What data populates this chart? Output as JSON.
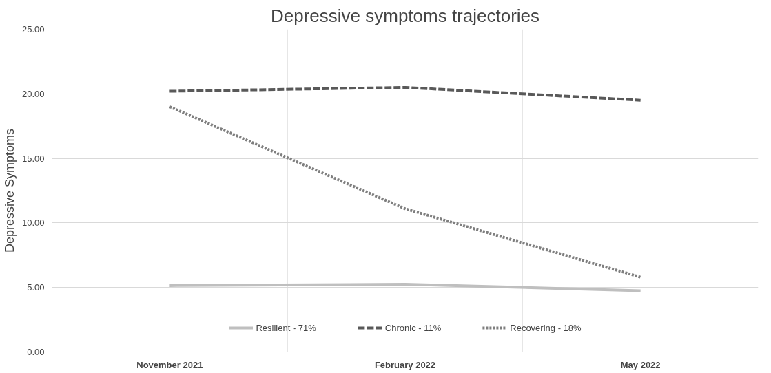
{
  "chart_data": {
    "type": "line",
    "title": "Depressive symptoms trajectories",
    "ylabel": "Depressive Symptoms",
    "categories": [
      "November 2021",
      "February 2022",
      "May 2022"
    ],
    "series": [
      {
        "name": "Resilient - 71%",
        "color": "#bfbfbf",
        "line_style": "solid",
        "values": [
          5.15,
          5.25,
          4.75
        ]
      },
      {
        "name": "Chronic - 11%",
        "color": "#595959",
        "line_style": "dashed",
        "values": [
          20.2,
          20.5,
          19.5
        ]
      },
      {
        "name": "Recovering - 18%",
        "color": "#7f7f7f",
        "line_style": "dotted",
        "values": [
          19.0,
          11.1,
          5.8
        ]
      }
    ],
    "ylim": [
      0,
      25
    ],
    "yticks": [
      {
        "value": 0,
        "label": "0.00"
      },
      {
        "value": 5,
        "label": "5.00"
      },
      {
        "value": 10,
        "label": "10.00"
      },
      {
        "value": 15,
        "label": "15.00"
      },
      {
        "value": 20,
        "label": "20.00"
      },
      {
        "value": 25,
        "label": "25.00"
      }
    ],
    "grid": true,
    "legend": "bottom",
    "marker": "none"
  }
}
